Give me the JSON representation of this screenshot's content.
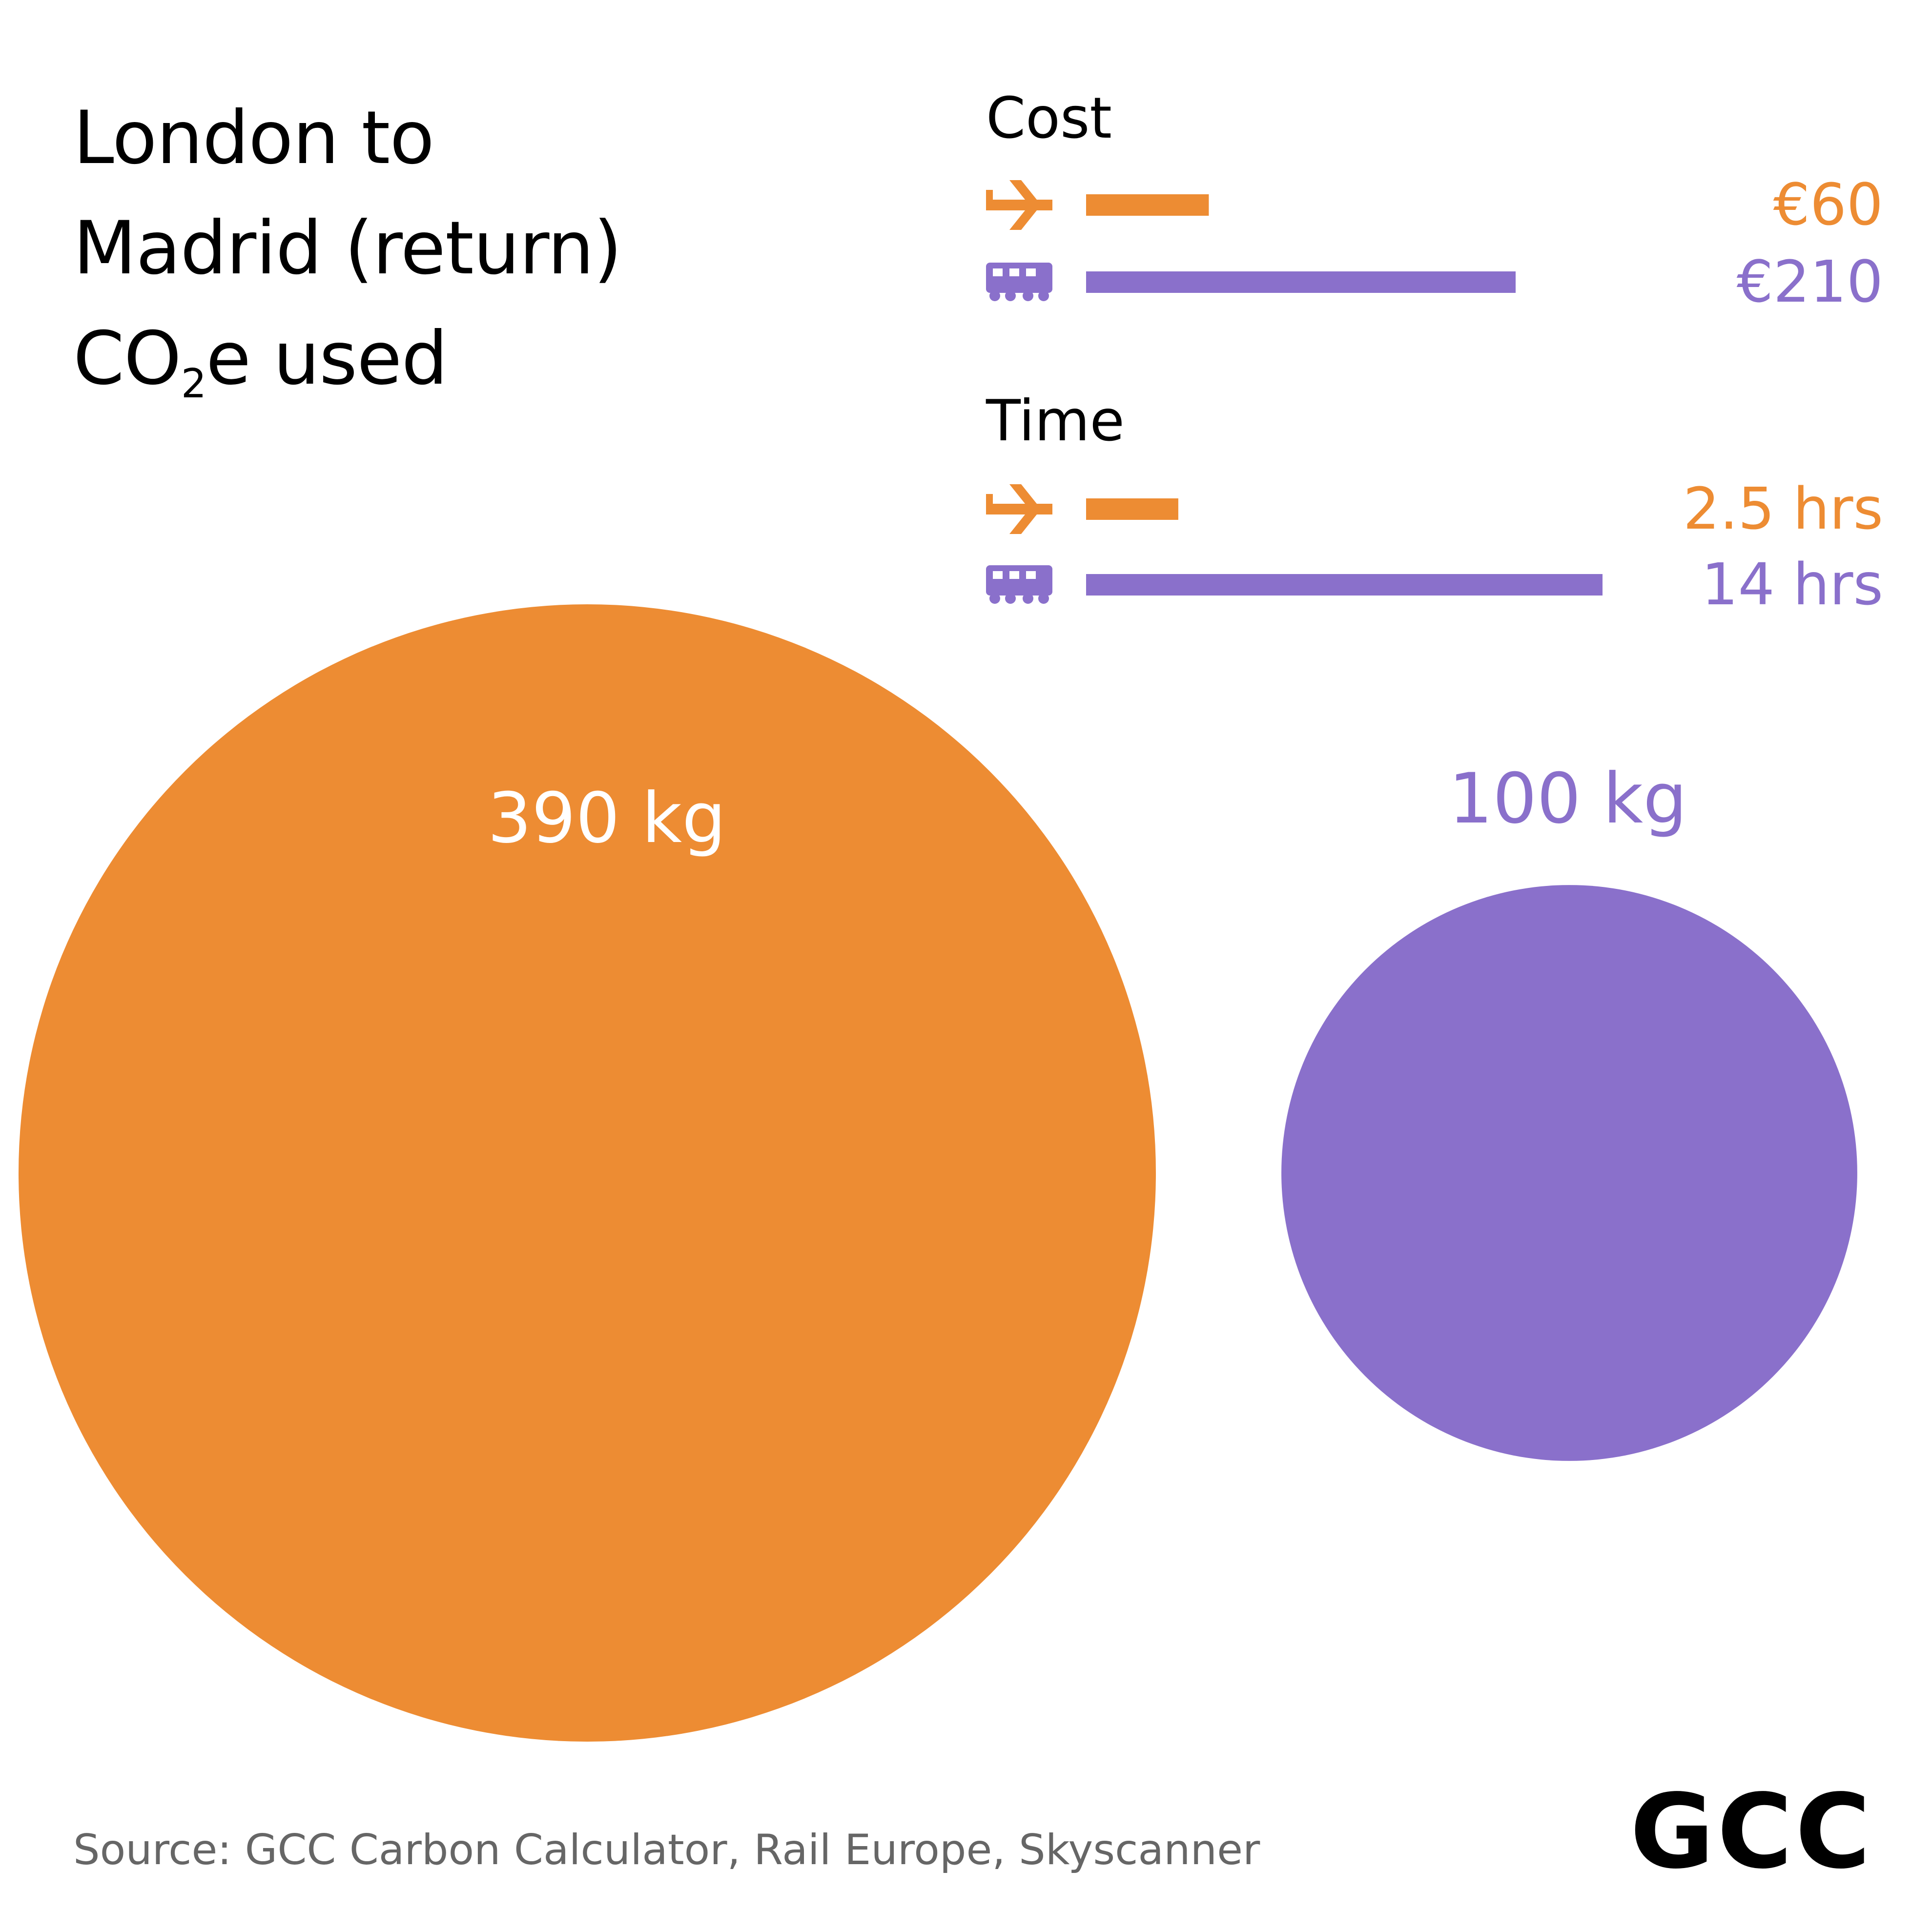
{
  "title": {
    "line1": "London to",
    "line2": "Madrid (return)",
    "line3_pre": "CO",
    "line3_sub": "2",
    "line3_post": "e used"
  },
  "chart_data": {
    "type": "bubble",
    "colors": {
      "plane": "#ED8C33",
      "train": "#8A70CB"
    },
    "emissions": [
      {
        "mode": "plane",
        "value": 390,
        "label": "390 kg",
        "icon": "plane-icon"
      },
      {
        "mode": "train",
        "value": 100,
        "label": "100 kg",
        "icon": "train-icon"
      }
    ],
    "cost": {
      "heading": "Cost",
      "items": [
        {
          "mode": "plane",
          "value": 60,
          "label": "€60",
          "icon": "plane-icon"
        },
        {
          "mode": "train",
          "value": 210,
          "label": "€210",
          "icon": "train-icon"
        }
      ]
    },
    "time": {
      "heading": "Time",
      "items": [
        {
          "mode": "plane",
          "value": 2.5,
          "label": "2.5 hrs",
          "icon": "plane-icon"
        },
        {
          "mode": "train",
          "value": 14,
          "label": "14 hrs",
          "icon": "train-icon"
        }
      ]
    }
  },
  "footer": {
    "source": "Source: GCC Carbon Calculator, Rail Europe, Skyscanner",
    "logo": "GCC"
  }
}
